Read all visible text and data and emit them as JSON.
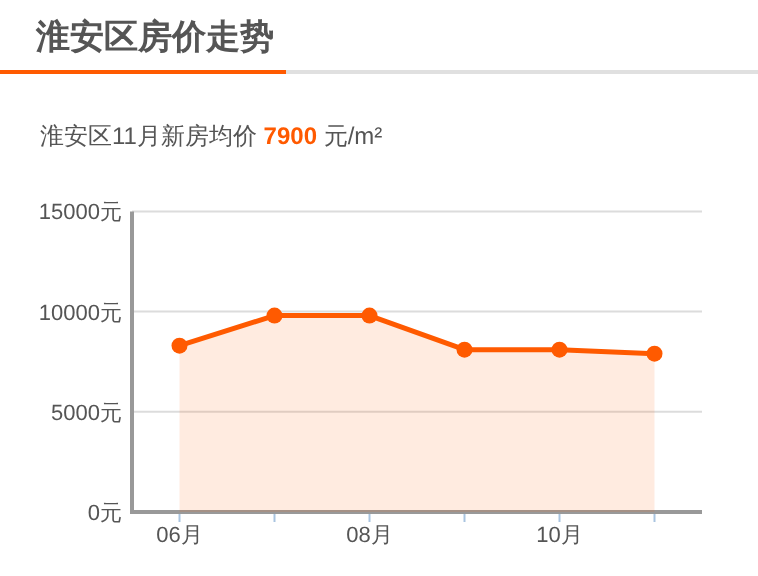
{
  "chart_data": {
    "type": "area",
    "title": "淮安区房价走势",
    "subtitle": "淮安区11月新房均价 **7900** 元/m²",
    "categories": [
      "06月",
      null,
      "08月",
      null,
      "10月",
      null
    ],
    "values": [
      8300,
      9800,
      9800,
      8100,
      8100,
      7900
    ],
    "color": "#ff5a00",
    "ylim": [
      0,
      15000
    ],
    "yticks": [
      {
        "value": 0,
        "label": "0元"
      },
      {
        "value": 5000,
        "label": "5000元"
      },
      {
        "value": 10000,
        "label": "10000元"
      },
      {
        "value": 15000,
        "label": "15000元"
      }
    ],
    "grid": "y",
    "marker": "circle"
  }
}
